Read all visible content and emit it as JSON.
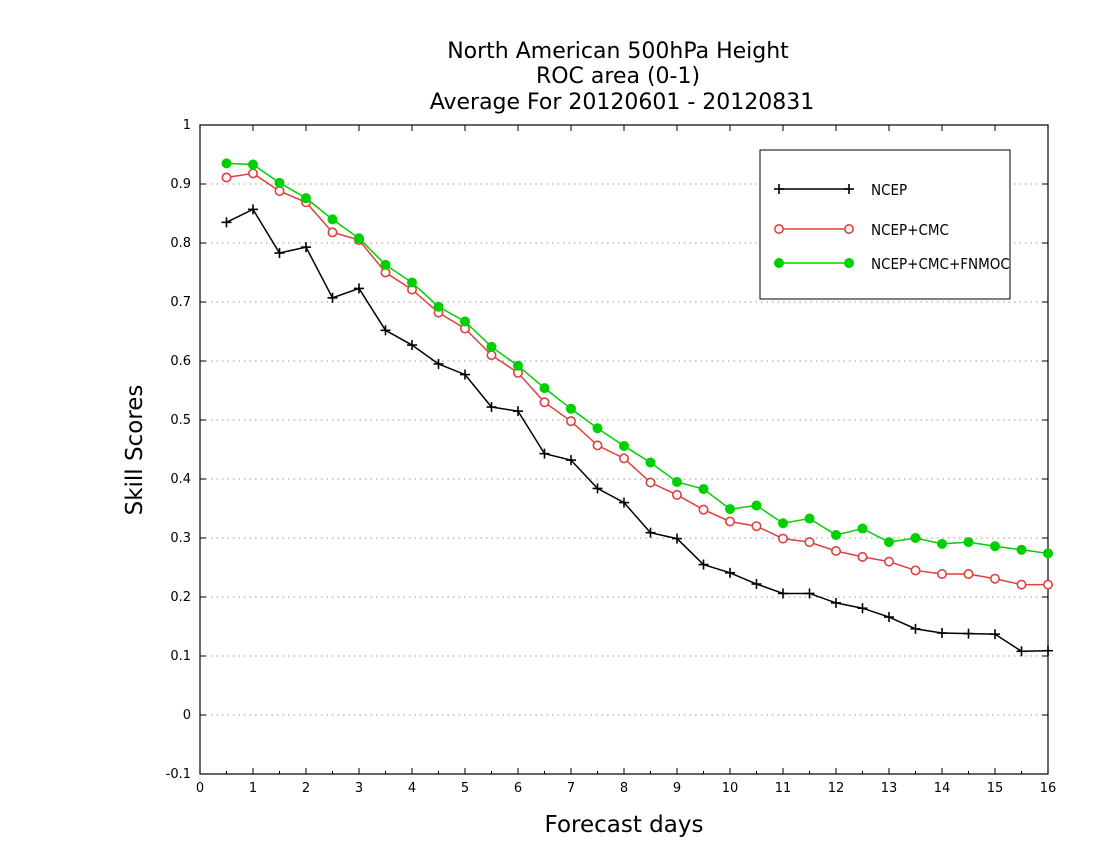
{
  "chart_data": {
    "type": "line",
    "title": [
      "North American 500hPa Height",
      "ROC area (0-1)",
      "Average For 20120601 - 20120831"
    ],
    "xlabel": "Forecast days",
    "ylabel": "Skill Scores",
    "xlim": [
      0,
      16
    ],
    "ylim": [
      -0.1,
      1
    ],
    "xticks": [
      "0",
      "1",
      "2",
      "3",
      "4",
      "5",
      "6",
      "7",
      "8",
      "9",
      "10",
      "11",
      "12",
      "13",
      "14",
      "15",
      "16"
    ],
    "yticks": [
      "-0.1",
      "0",
      "0.1",
      "0.2",
      "0.3",
      "0.4",
      "0.5",
      "0.6",
      "0.7",
      "0.8",
      "0.9",
      "1"
    ],
    "grid": "horizontal-dotted",
    "legend_position": "top-right",
    "x": [
      0.5,
      1,
      1.5,
      2,
      2.5,
      3,
      3.5,
      4,
      4.5,
      5,
      5.5,
      6,
      6.5,
      7,
      7.5,
      8,
      8.5,
      9,
      9.5,
      10,
      10.5,
      11,
      11.5,
      12,
      12.5,
      13,
      13.5,
      14,
      14.5,
      15,
      15.5,
      16
    ],
    "series": [
      {
        "name": "NCEP",
        "color": "#000000",
        "marker": "plus",
        "values": [
          0.835,
          0.857,
          0.783,
          0.793,
          0.707,
          0.723,
          0.652,
          0.627,
          0.595,
          0.577,
          0.522,
          0.515,
          0.443,
          0.432,
          0.384,
          0.36,
          0.309,
          0.299,
          0.255,
          0.241,
          0.222,
          0.206,
          0.206,
          0.19,
          0.181,
          0.166,
          0.146,
          0.139,
          0.138,
          0.137,
          0.108,
          0.109
        ]
      },
      {
        "name": "NCEP+CMC",
        "color": "#e0403c",
        "marker": "open-circle",
        "values": [
          0.911,
          0.918,
          0.888,
          0.869,
          0.818,
          0.805,
          0.75,
          0.721,
          0.682,
          0.655,
          0.61,
          0.58,
          0.53,
          0.498,
          0.457,
          0.435,
          0.394,
          0.373,
          0.348,
          0.328,
          0.32,
          0.299,
          0.293,
          0.278,
          0.268,
          0.26,
          0.245,
          0.239,
          0.239,
          0.231,
          0.221,
          0.221
        ]
      },
      {
        "name": "NCEP+CMC+FNMOC",
        "color": "#00d000",
        "marker": "filled-circle",
        "values": [
          0.935,
          0.933,
          0.902,
          0.876,
          0.84,
          0.808,
          0.763,
          0.733,
          0.692,
          0.667,
          0.624,
          0.592,
          0.554,
          0.519,
          0.486,
          0.456,
          0.428,
          0.395,
          0.383,
          0.349,
          0.355,
          0.325,
          0.333,
          0.305,
          0.316,
          0.293,
          0.3,
          0.29,
          0.293,
          0.286,
          0.28,
          0.274
        ]
      }
    ]
  }
}
